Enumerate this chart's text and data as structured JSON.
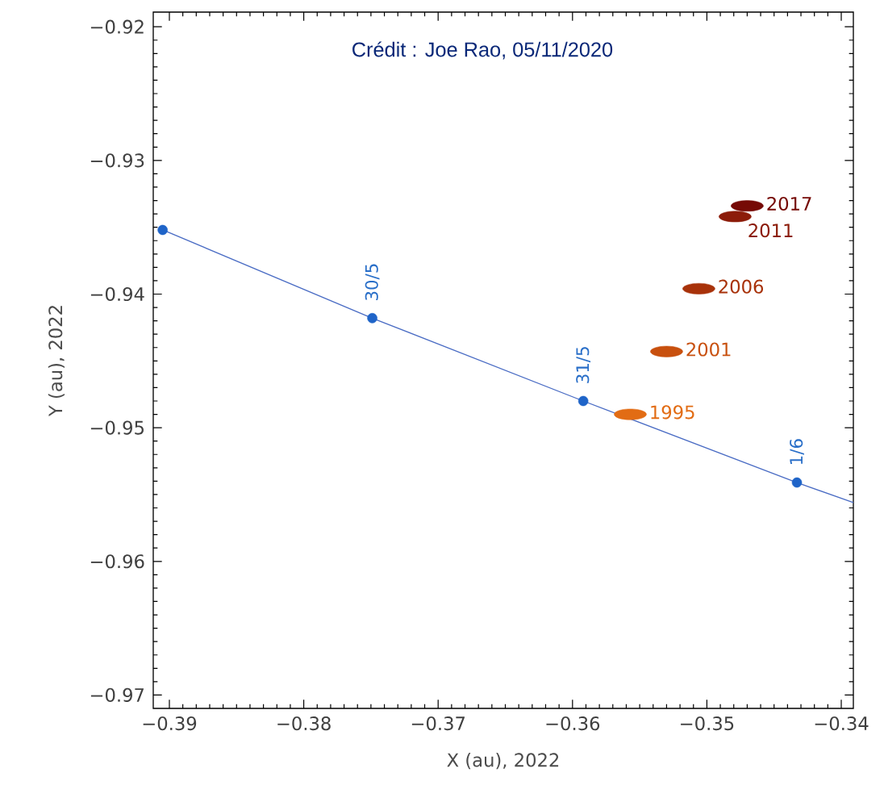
{
  "chart_data": {
    "type": "scatter",
    "xlabel": "X (au), 2022",
    "ylabel": "Y (au), 2022",
    "xlim": [
      -0.3912,
      -0.3391
    ],
    "ylim": [
      -0.971,
      -0.9189
    ],
    "xticks": [
      {
        "value": -0.39,
        "label": "−0.39"
      },
      {
        "value": -0.38,
        "label": "−0.38"
      },
      {
        "value": -0.37,
        "label": "−0.37"
      },
      {
        "value": -0.36,
        "label": "−0.36"
      },
      {
        "value": -0.35,
        "label": "−0.35"
      },
      {
        "value": -0.34,
        "label": "−0.34"
      }
    ],
    "yticks": [
      {
        "value": -0.97,
        "label": "−0.97"
      },
      {
        "value": -0.96,
        "label": "−0.96"
      },
      {
        "value": -0.95,
        "label": "−0.95"
      },
      {
        "value": -0.94,
        "label": "−0.94"
      },
      {
        "value": -0.93,
        "label": "−0.93"
      },
      {
        "value": -0.92,
        "label": "−0.92"
      }
    ],
    "legend": "right",
    "series": [
      {
        "type": "line",
        "color": "#4a6cc4",
        "marker": "none",
        "x": [
          -0.3905,
          -0.3749,
          -0.3592,
          -0.3433,
          -0.3391
        ],
        "values": [
          -0.9352,
          -0.9418,
          -0.948,
          -0.9541,
          -0.9556
        ]
      },
      {
        "type": "scatter",
        "color": "#1f64c8",
        "marker": "circle",
        "x": [
          -0.3905,
          -0.3749,
          -0.3592,
          -0.3433
        ],
        "values": [
          -0.9352,
          -0.9418,
          -0.948,
          -0.9541
        ]
      },
      {
        "type": "scatter",
        "name": "2017",
        "color": "#760a06",
        "marker": "circle",
        "x": [
          -0.347
        ],
        "values": [
          -0.9334
        ]
      },
      {
        "type": "scatter",
        "name": "2011",
        "color": "#8c1c0a",
        "marker": "circle",
        "x": [
          -0.3479
        ],
        "values": [
          -0.9342
        ]
      },
      {
        "type": "scatter",
        "name": "2006",
        "color": "#a8320a",
        "marker": "circle",
        "x": [
          -0.3506
        ],
        "values": [
          -0.9396
        ]
      },
      {
        "type": "scatter",
        "name": "2001",
        "color": "#c8500e",
        "marker": "circle",
        "x": [
          -0.353
        ],
        "values": [
          -0.9443
        ]
      },
      {
        "type": "scatter",
        "name": "1995",
        "color": "#e26c14",
        "marker": "circle",
        "x": [
          -0.3557
        ],
        "values": [
          -0.949
        ]
      }
    ],
    "annotations": [
      "Crédit : Joe Rao, 05/11/2020",
      {
        "text": "30/5",
        "x": -0.3749,
        "y": -0.9418
      },
      {
        "text": "31/5",
        "x": -0.3592,
        "y": -0.948
      },
      {
        "text": "1/6",
        "x": -0.3433,
        "y": -0.9541
      }
    ]
  }
}
